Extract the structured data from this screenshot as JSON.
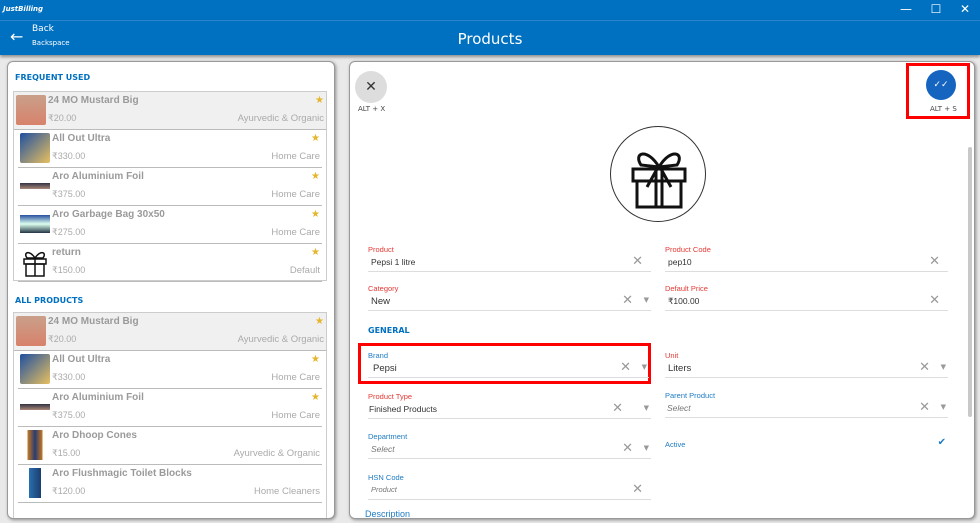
{
  "app": {
    "logo": "JustBilling",
    "minimize": "—",
    "maximize": "☐",
    "close": "✕"
  },
  "header": {
    "back_label": "Back",
    "back_shortcut": "Backspace",
    "title": "Products"
  },
  "left": {
    "frequent_title": "FREQUENT USED",
    "frequent": [
      {
        "name": "24 MO Mustard Big",
        "price": "₹20.00",
        "category": "Ayurvedic & Organic",
        "starred": true
      },
      {
        "name": "All Out Ultra",
        "price": "₹330.00",
        "category": "Home Care",
        "starred": true
      },
      {
        "name": "Aro Aluminium Foil",
        "price": "₹375.00",
        "category": "Home Care",
        "starred": true
      },
      {
        "name": "Aro Garbage Bag 30x50",
        "price": "₹275.00",
        "category": "Home Care",
        "starred": true
      },
      {
        "name": "return",
        "price": "₹150.00",
        "category": "Default",
        "starred": true
      }
    ],
    "all_title": "ALL PRODUCTS",
    "all": [
      {
        "name": "24 MO Mustard Big",
        "price": "₹20.00",
        "category": "Ayurvedic & Organic",
        "starred": true
      },
      {
        "name": "All Out Ultra",
        "price": "₹330.00",
        "category": "Home Care",
        "starred": true
      },
      {
        "name": "Aro Aluminium Foil",
        "price": "₹375.00",
        "category": "Home Care",
        "starred": true
      },
      {
        "name": "Aro Dhoop Cones",
        "price": "₹15.00",
        "category": "Ayurvedic & Organic",
        "starred": false
      },
      {
        "name": "Aro Flushmagic Toilet Blocks",
        "price": "₹120.00",
        "category": "Home Cleaners",
        "starred": false
      }
    ]
  },
  "form": {
    "close_shortcut": "ALT + X",
    "save_shortcut": "ALT + S",
    "product": {
      "label": "Product",
      "value": "Pepsi 1 litre"
    },
    "product_code": {
      "label": "Product Code",
      "value": "pep10"
    },
    "category": {
      "label": "Category",
      "value": "New"
    },
    "default_price": {
      "label": "Default Price",
      "value": "₹100.00"
    },
    "general_title": "GENERAL",
    "brand": {
      "label": "Brand",
      "value": "Pepsi"
    },
    "unit": {
      "label": "Unit",
      "value": "Liters"
    },
    "product_type": {
      "label": "Product Type",
      "value": "Finished Products"
    },
    "parent_product": {
      "label": "Parent Product",
      "placeholder": "Select"
    },
    "department": {
      "label": "Department",
      "placeholder": "Select"
    },
    "active": {
      "label": "Active",
      "checked": true
    },
    "hsn": {
      "label": "HSN Code",
      "placeholder": "Product"
    },
    "description_label": "Description"
  },
  "colors": {
    "brand": "#0070c0",
    "required_label": "#e53935",
    "highlight": "#ff0000",
    "star": "#e5b52a"
  }
}
